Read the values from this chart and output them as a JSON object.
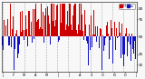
{
  "title": "",
  "ylim": [
    0,
    100
  ],
  "num_days": 365,
  "background_color": "#f8f8f8",
  "grid_color": "#aaaaaa",
  "bar_color_high": "#cc0000",
  "bar_color_low": "#1111cc",
  "reference_line": 50,
  "legend_labels": [
    "Hi",
    "Lo"
  ],
  "legend_colors": [
    "#cc0000",
    "#1111cc"
  ],
  "seed": 12345,
  "ytick_labels": [
    "10",
    "25",
    "50",
    "75",
    "90"
  ],
  "ytick_vals": [
    10,
    25,
    50,
    75,
    90
  ],
  "month_labels": [
    "J",
    "F",
    "M",
    "A",
    "M",
    "J",
    "J",
    "A",
    "S",
    "O",
    "N",
    "D",
    "J"
  ],
  "month_positions": [
    0,
    30,
    59,
    90,
    120,
    151,
    181,
    212,
    243,
    273,
    304,
    334,
    364
  ]
}
